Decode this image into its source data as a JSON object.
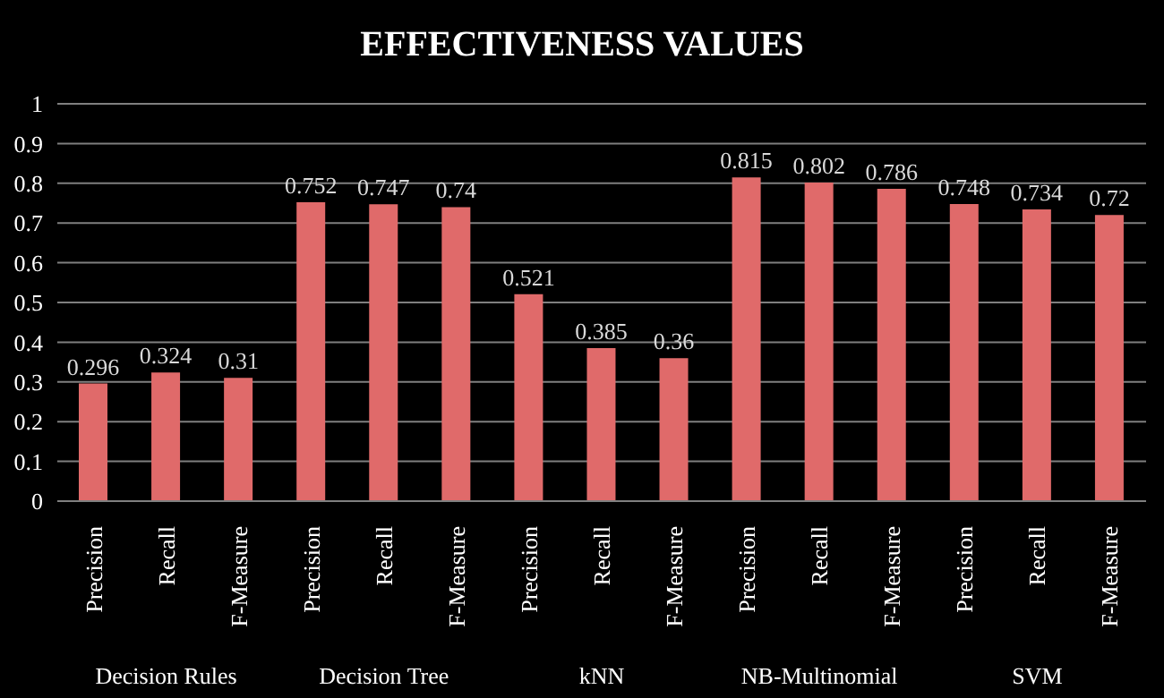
{
  "chart_data": {
    "type": "bar",
    "title": "EFFECTIVENESS VALUES",
    "categories": [
      "Precision",
      "Recall",
      "F-Measure",
      "Precision",
      "Recall",
      "F-Measure",
      "Precision",
      "Recall",
      "F-Measure",
      "Precision",
      "Recall",
      "F-Measure",
      "Precision",
      "Recall",
      "F-Measure"
    ],
    "values": [
      0.296,
      0.324,
      0.31,
      0.752,
      0.747,
      0.74,
      0.521,
      0.385,
      0.36,
      0.815,
      0.802,
      0.786,
      0.748,
      0.734,
      0.72
    ],
    "color": "#e06a6a",
    "annotations": [
      "Decision Rules",
      "Decision Tree",
      "kNN",
      "NB-Multinomial",
      "SVM"
    ],
    "ylim": [
      0,
      1
    ],
    "yticks": [
      0,
      0.1,
      0.2,
      0.3,
      0.4,
      0.5,
      0.6,
      0.7,
      0.8,
      0.9,
      1
    ],
    "grid": "y",
    "data_labels": true,
    "legend": false
  }
}
